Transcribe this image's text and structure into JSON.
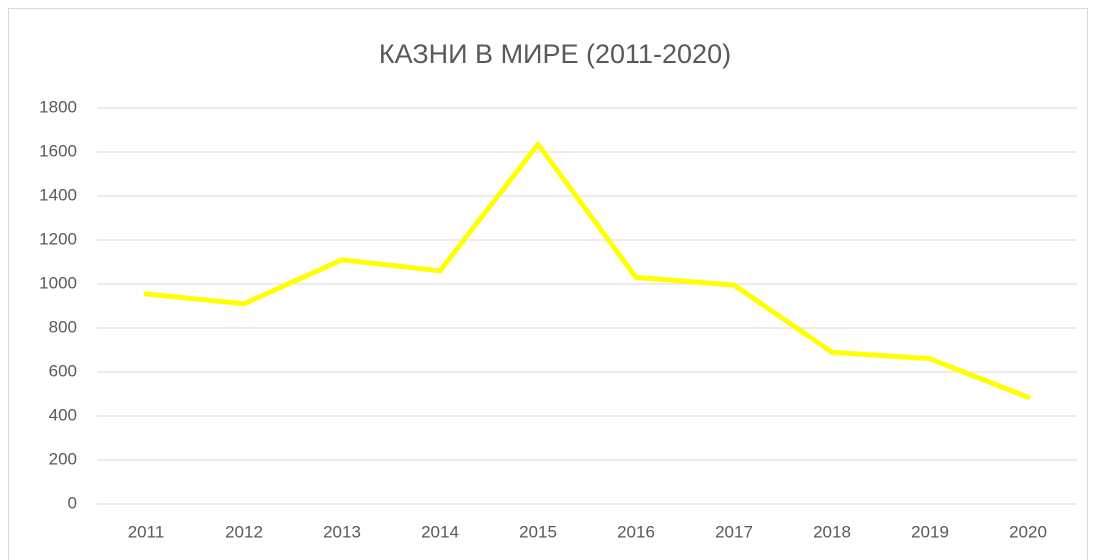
{
  "chart_data": {
    "type": "line",
    "title": "КАЗНИ В МИРЕ (2011-2020)",
    "categories": [
      "2011",
      "2012",
      "2013",
      "2014",
      "2015",
      "2016",
      "2017",
      "2018",
      "2019",
      "2020"
    ],
    "series": [
      {
        "color": "#ffff00",
        "values": [
          955,
          910,
          1110,
          1060,
          1635,
          1030,
          995,
          690,
          660,
          485
        ]
      }
    ],
    "ylim": [
      0,
      1800
    ],
    "yticks": [
      0,
      200,
      400,
      600,
      800,
      1000,
      1200,
      1400,
      1600,
      1800
    ],
    "grid": true
  }
}
